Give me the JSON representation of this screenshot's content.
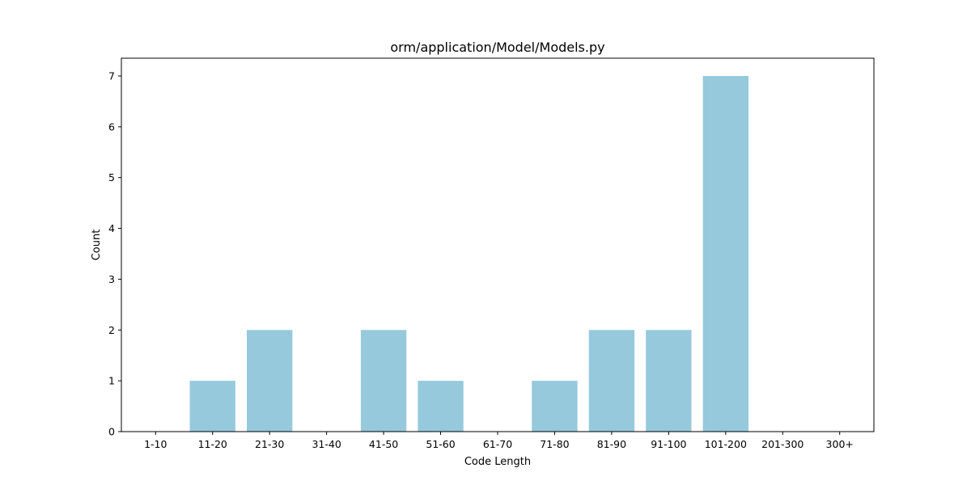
{
  "chart_data": {
    "type": "bar",
    "title": "orm/application/Model/Models.py",
    "xlabel": "Code Length",
    "ylabel": "Count",
    "categories": [
      "1-10",
      "11-20",
      "21-30",
      "31-40",
      "41-50",
      "51-60",
      "61-70",
      "71-80",
      "81-90",
      "91-100",
      "101-200",
      "201-300",
      "300+"
    ],
    "values": [
      0,
      1,
      2,
      0,
      2,
      1,
      0,
      1,
      2,
      2,
      7,
      0,
      0
    ],
    "ylim": [
      0,
      7.35
    ],
    "yticks": [
      0,
      1,
      2,
      3,
      4,
      5,
      6,
      7
    ],
    "grid": false,
    "bar_color": "#96c9dc"
  }
}
